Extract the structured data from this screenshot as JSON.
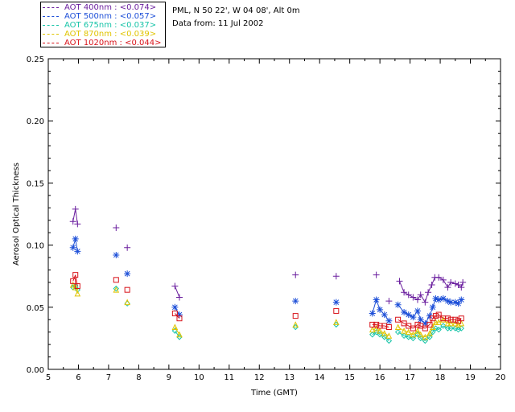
{
  "info": {
    "station": "PML, N 50 22', W 04 08', Alt 0m",
    "date_text": "Data from: 11 Jul 2002"
  },
  "legend": [
    {
      "label": "AOT  400nm : <0.074>",
      "color": "#6a1e9e"
    },
    {
      "label": "AOT  500nm : <0.057>",
      "color": "#1d4fd8"
    },
    {
      "label": "AOT  675nm : <0.037>",
      "color": "#17c4a8"
    },
    {
      "label": "AOT  870nm : <0.039>",
      "color": "#e0c400"
    },
    {
      "label": "AOT 1020nm : <0.044>",
      "color": "#d8131a"
    }
  ],
  "chart_data": {
    "type": "scatter",
    "xlabel": "Time (GMT)",
    "ylabel": "Aerosol Optical Thickness",
    "xlim": [
      5,
      20
    ],
    "ylim": [
      0,
      0.25
    ],
    "xticks": [
      "5",
      "6",
      "7",
      "8",
      "9",
      "10",
      "11",
      "12",
      "13",
      "14",
      "15",
      "16",
      "17",
      "18",
      "19",
      "20"
    ],
    "yticks": [
      "0.00",
      "0.05",
      "0.10",
      "0.15",
      "0.20",
      "0.25"
    ],
    "series": [
      {
        "name": "AOT  400nm",
        "color": "#6a1e9e",
        "marker": "plus",
        "x": [
          5.82,
          5.9,
          5.97,
          7.25,
          7.62,
          9.2,
          9.35,
          13.2,
          14.55,
          15.88,
          16.3,
          16.65,
          16.8,
          16.95,
          17.1,
          17.25,
          17.35,
          17.5,
          17.6,
          17.72,
          17.82,
          17.95,
          18.1,
          18.25,
          18.35,
          18.5,
          18.6,
          18.7,
          18.75
        ],
        "y": [
          0.119,
          0.129,
          0.117,
          0.114,
          0.098,
          0.067,
          0.058,
          0.076,
          0.075,
          0.076,
          0.055,
          0.071,
          0.062,
          0.06,
          0.058,
          0.056,
          0.06,
          0.054,
          0.062,
          0.068,
          0.074,
          0.074,
          0.072,
          0.066,
          0.07,
          0.069,
          0.068,
          0.066,
          0.07
        ]
      },
      {
        "name": "AOT  500nm",
        "color": "#1d4fd8",
        "marker": "asterisk",
        "x": [
          5.82,
          5.9,
          5.97,
          7.25,
          7.62,
          9.2,
          9.35,
          13.2,
          14.55,
          15.75,
          15.88,
          16.0,
          16.15,
          16.3,
          16.6,
          16.8,
          16.95,
          17.1,
          17.25,
          17.35,
          17.5,
          17.65,
          17.75,
          17.85,
          17.95,
          18.1,
          18.25,
          18.35,
          18.5,
          18.6,
          18.7
        ],
        "y": [
          0.098,
          0.105,
          0.095,
          0.092,
          0.077,
          0.05,
          0.044,
          0.055,
          0.054,
          0.045,
          0.056,
          0.048,
          0.044,
          0.039,
          0.052,
          0.046,
          0.044,
          0.042,
          0.047,
          0.04,
          0.037,
          0.043,
          0.05,
          0.057,
          0.056,
          0.057,
          0.055,
          0.054,
          0.054,
          0.053,
          0.056
        ]
      },
      {
        "name": "AOT  675nm",
        "color": "#17c4a8",
        "marker": "diamond",
        "x": [
          5.82,
          5.9,
          5.97,
          7.25,
          7.62,
          9.2,
          9.35,
          13.2,
          14.55,
          15.75,
          15.88,
          16.0,
          16.15,
          16.3,
          16.6,
          16.8,
          16.95,
          17.1,
          17.25,
          17.35,
          17.5,
          17.65,
          17.75,
          17.85,
          17.95,
          18.1,
          18.25,
          18.35,
          18.5,
          18.6,
          18.7
        ],
        "y": [
          0.066,
          0.067,
          0.064,
          0.065,
          0.053,
          0.031,
          0.026,
          0.034,
          0.036,
          0.028,
          0.03,
          0.028,
          0.026,
          0.023,
          0.03,
          0.027,
          0.026,
          0.025,
          0.028,
          0.025,
          0.023,
          0.026,
          0.03,
          0.033,
          0.032,
          0.035,
          0.033,
          0.033,
          0.033,
          0.032,
          0.033
        ]
      },
      {
        "name": "AOT  870nm",
        "color": "#e0c400",
        "marker": "triangle",
        "x": [
          5.82,
          5.9,
          5.97,
          7.25,
          7.62,
          9.2,
          9.35,
          13.2,
          14.55,
          15.75,
          15.88,
          16.0,
          16.15,
          16.3,
          16.6,
          16.8,
          16.95,
          17.1,
          17.25,
          17.35,
          17.5,
          17.65,
          17.75,
          17.85,
          17.95,
          18.1,
          18.25,
          18.35,
          18.5,
          18.6,
          18.7
        ],
        "y": [
          0.068,
          0.066,
          0.061,
          0.064,
          0.054,
          0.034,
          0.028,
          0.036,
          0.038,
          0.032,
          0.033,
          0.031,
          0.029,
          0.027,
          0.034,
          0.031,
          0.03,
          0.028,
          0.031,
          0.028,
          0.026,
          0.029,
          0.034,
          0.038,
          0.038,
          0.04,
          0.037,
          0.037,
          0.037,
          0.036,
          0.037
        ]
      },
      {
        "name": "AOT 1020nm",
        "color": "#d8131a",
        "marker": "square",
        "x": [
          5.82,
          5.9,
          5.97,
          7.25,
          7.62,
          9.2,
          9.35,
          13.2,
          14.55,
          15.75,
          15.88,
          16.0,
          16.15,
          16.3,
          16.6,
          16.8,
          16.95,
          17.1,
          17.25,
          17.35,
          17.5,
          17.65,
          17.75,
          17.85,
          17.95,
          18.1,
          18.25,
          18.35,
          18.5,
          18.6,
          18.7
        ],
        "y": [
          0.071,
          0.076,
          0.067,
          0.072,
          0.064,
          0.045,
          0.041,
          0.043,
          0.047,
          0.036,
          0.036,
          0.035,
          0.035,
          0.034,
          0.04,
          0.037,
          0.035,
          0.033,
          0.036,
          0.035,
          0.033,
          0.036,
          0.041,
          0.043,
          0.044,
          0.041,
          0.041,
          0.04,
          0.04,
          0.039,
          0.041
        ]
      }
    ]
  }
}
